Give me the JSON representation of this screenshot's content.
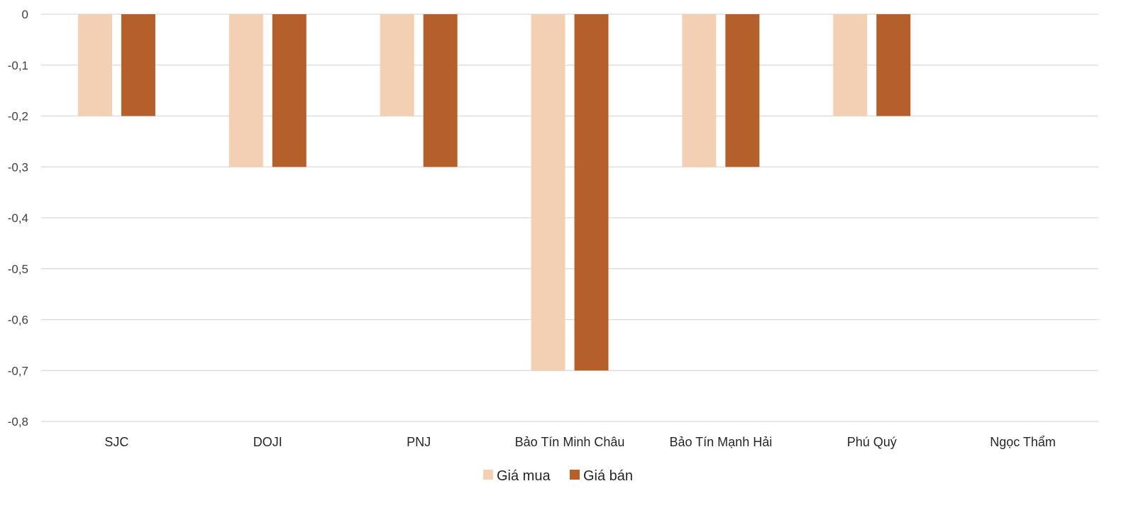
{
  "chart_data": {
    "type": "bar",
    "categories": [
      "SJC",
      "DOJI",
      "PNJ",
      "Bảo Tín Minh Châu",
      "Bảo Tín Mạnh Hải",
      "Phú Quý",
      "Ngọc Thẩm"
    ],
    "series": [
      {
        "name": "Giá mua",
        "color": "#F3CFB3",
        "values": [
          -0.2,
          -0.3,
          -0.2,
          -0.7,
          -0.3,
          -0.2,
          0
        ]
      },
      {
        "name": "Giá bán",
        "color": "#B5602A",
        "values": [
          -0.2,
          -0.3,
          -0.3,
          -0.7,
          -0.3,
          -0.2,
          0
        ]
      }
    ],
    "ylim": [
      -0.8,
      0
    ],
    "yticks": [
      0,
      -0.1,
      -0.2,
      -0.3,
      -0.4,
      -0.5,
      -0.6,
      -0.7,
      -0.8
    ],
    "ytick_labels": [
      "0",
      "-0,1",
      "-0,2",
      "-0,3",
      "-0,4",
      "-0,5",
      "-0,6",
      "-0,7",
      "-0,8"
    ],
    "grid": true,
    "grid_color": "#D9D9D9",
    "legend_position": "bottom",
    "title": "",
    "xlabel": "",
    "ylabel": ""
  }
}
